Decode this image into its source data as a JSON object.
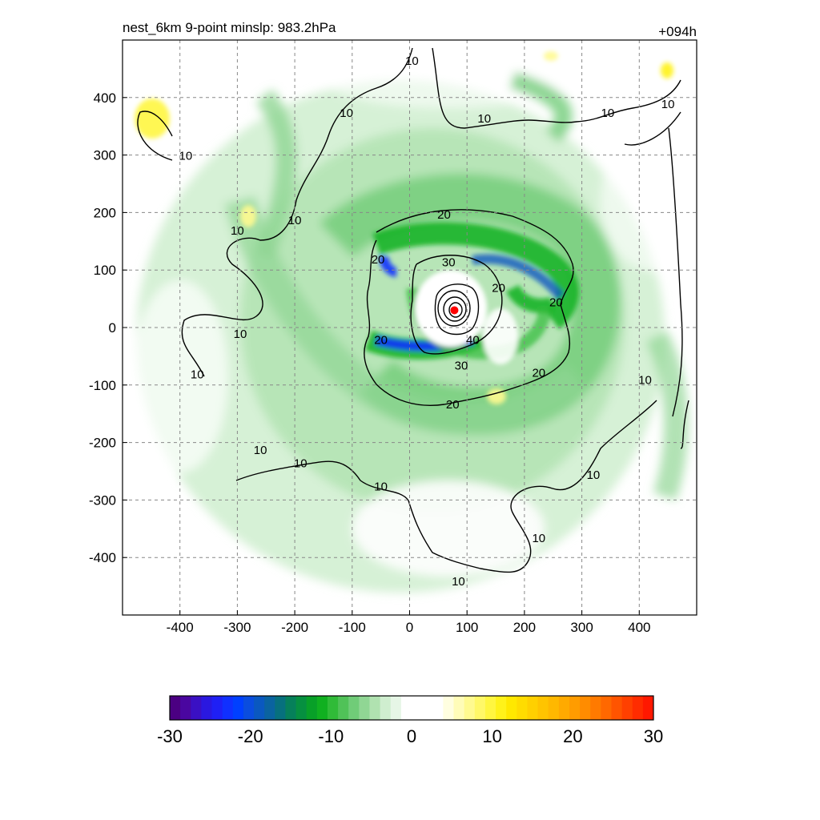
{
  "title_left": "nest_6km  9-point minslp: 983.2hPa",
  "title_right": "+094h",
  "chart_data": {
    "type": "heatmap",
    "xlim": [
      -500,
      500
    ],
    "ylim": [
      -500,
      500
    ],
    "x_ticks": [
      -400,
      -300,
      -200,
      -100,
      0,
      100,
      200,
      300,
      400
    ],
    "y_ticks": [
      400,
      300,
      200,
      100,
      0,
      -100,
      -200,
      -300,
      -400
    ],
    "grid": true,
    "center": {
      "x": 78,
      "y": 30,
      "color": "#ff0000"
    },
    "contour_labels": [
      {
        "text": "10",
        "x": 4,
        "y": 465
      },
      {
        "text": "10",
        "x": -110,
        "y": 375
      },
      {
        "text": "10",
        "x": 130,
        "y": 365
      },
      {
        "text": "10",
        "x": 345,
        "y": 375
      },
      {
        "text": "10",
        "x": 450,
        "y": 390
      },
      {
        "text": "10",
        "x": -390,
        "y": 300
      },
      {
        "text": "10",
        "x": -200,
        "y": 188
      },
      {
        "text": "10",
        "x": -300,
        "y": 170
      },
      {
        "text": "20",
        "x": 60,
        "y": 198
      },
      {
        "text": "20",
        "x": -55,
        "y": 120
      },
      {
        "text": "30",
        "x": 68,
        "y": 115
      },
      {
        "text": "20",
        "x": 155,
        "y": 70
      },
      {
        "text": "20",
        "x": 255,
        "y": 45
      },
      {
        "text": "10",
        "x": -295,
        "y": -10
      },
      {
        "text": "20",
        "x": -50,
        "y": -20
      },
      {
        "text": "40",
        "x": 110,
        "y": -20
      },
      {
        "text": "30",
        "x": 90,
        "y": -65
      },
      {
        "text": "20",
        "x": 225,
        "y": -77
      },
      {
        "text": "10",
        "x": -370,
        "y": -80
      },
      {
        "text": "10",
        "x": 410,
        "y": -90
      },
      {
        "text": "20",
        "x": 75,
        "y": -132
      },
      {
        "text": "10",
        "x": -260,
        "y": -212
      },
      {
        "text": "10",
        "x": -190,
        "y": -235
      },
      {
        "text": "10",
        "x": 320,
        "y": -255
      },
      {
        "text": "10",
        "x": -50,
        "y": -275
      },
      {
        "text": "10",
        "x": 225,
        "y": -365
      },
      {
        "text": "10",
        "x": 85,
        "y": -440
      }
    ],
    "colorbar": {
      "min": -30,
      "max": 30,
      "tick_labels": [
        "-30",
        "-20",
        "-10",
        "0",
        "10",
        "20",
        "30"
      ],
      "colors": [
        "#4b0082",
        "#4a06a0",
        "#3a10c4",
        "#2a18e0",
        "#1f20f5",
        "#1030ff",
        "#0040ff",
        "#0a4ddf",
        "#0a58c0",
        "#0a63a0",
        "#07707e",
        "#06805a",
        "#069040",
        "#08a028",
        "#10b020",
        "#30bb38",
        "#50c258",
        "#70cc78",
        "#90d694",
        "#b0e2b0",
        "#cfeecf",
        "#e6f6e6",
        "#ffffff",
        "#ffffff",
        "#ffffff",
        "#ffffff",
        "#fffee0",
        "#fffcb8",
        "#fffa90",
        "#fff868",
        "#fff640",
        "#fff21a",
        "#ffe800",
        "#ffdc00",
        "#ffd000",
        "#ffc400",
        "#ffb800",
        "#ffaa00",
        "#ff9c00",
        "#ff8c00",
        "#ff7a00",
        "#ff6800",
        "#ff5400",
        "#ff4000",
        "#ff2c00",
        "#ff1800"
      ]
    }
  }
}
